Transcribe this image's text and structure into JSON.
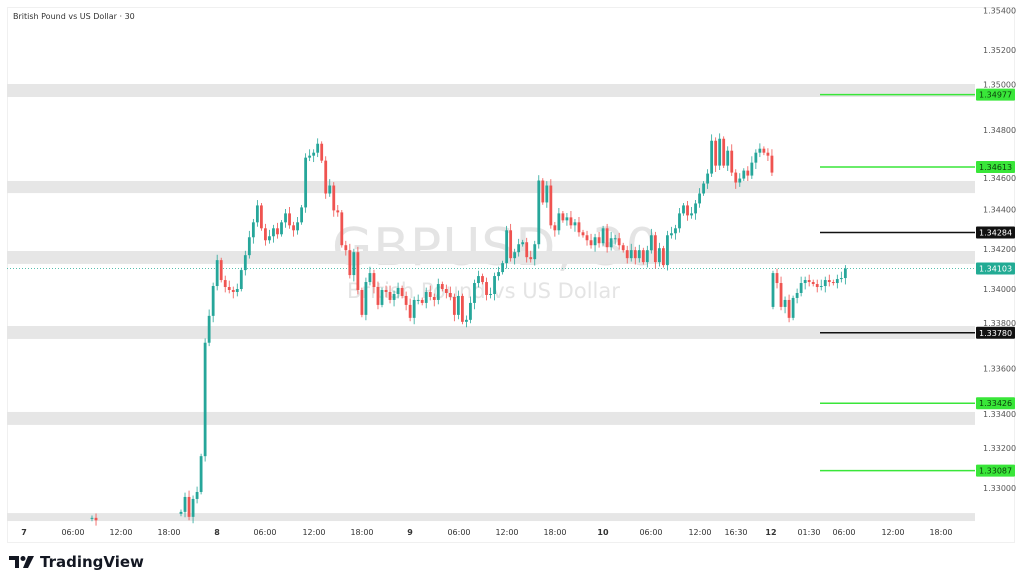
{
  "header": {
    "title": "British Pound vs US Dollar · 30"
  },
  "watermark": {
    "symbol": "GBPUSD, 30",
    "description": "British Pound vs US Dollar"
  },
  "footer": {
    "brand": "TradingView",
    "logo_icon": "tradingview-logo-icon"
  },
  "colors": {
    "up": "#26a69a",
    "down": "#ef5350",
    "zone": "#e6e6e6",
    "green_level": "#39e639",
    "black_level": "#111111",
    "current_price": "#22ab94"
  },
  "chart_data": {
    "type": "candlestick",
    "symbol": "GBPUSD",
    "interval": "30",
    "ylim": [
      1.3283,
      1.3542
    ],
    "y_ticks": [
      "1.35400",
      "1.35200",
      "1.35000",
      "1.34800",
      "1.34600",
      "1.34400",
      "1.34200",
      "1.34000",
      "1.33800",
      "1.33600",
      "1.33400",
      "1.33200",
      "1.33000"
    ],
    "x_ticks": [
      "7",
      "06:00",
      "12:00",
      "18:00",
      "8",
      "06:00",
      "12:00",
      "18:00",
      "9",
      "06:00",
      "12:00",
      "18:00",
      "10",
      "06:00",
      "12:00",
      "16:30",
      "12",
      "01:30",
      "06:00",
      "12:00",
      "18:00"
    ],
    "zones": [
      [
        1.34965,
        1.3503
      ],
      [
        1.34482,
        1.34543
      ],
      [
        1.34126,
        1.34191
      ],
      [
        1.33749,
        1.33814
      ],
      [
        1.33317,
        1.33382
      ],
      [
        1.32834,
        1.32874
      ]
    ],
    "levels": [
      {
        "price": "1.34977",
        "color": "green"
      },
      {
        "price": "1.34613",
        "color": "green"
      },
      {
        "price": "1.34284",
        "color": "black"
      },
      {
        "price": "1.33780",
        "color": "black"
      },
      {
        "price": "1.33426",
        "color": "green"
      },
      {
        "price": "1.33087",
        "color": "green"
      }
    ],
    "current_price": "1.34103",
    "sessions": [
      {
        "open": 1.32845,
        "closes": [
          1.3285,
          1.32838
        ]
      },
      {
        "open": 1.3287,
        "closes": [
          1.3288,
          1.32955,
          1.32855,
          1.32945,
          1.3298,
          1.3316,
          1.3373,
          1.33865,
          1.34015,
          1.34145,
          1.34045,
          1.3401,
          1.33995,
          1.33985,
          1.34,
          1.34095,
          1.3417,
          1.3426,
          1.34335,
          1.3442,
          1.34305,
          1.34245,
          1.34265,
          1.34305,
          1.34275,
          1.34335,
          1.3438,
          1.3432,
          1.34295,
          1.34335,
          1.3441,
          1.3466,
          1.3467,
          1.34685,
          1.3473,
          1.34645,
          1.3448,
          1.3452,
          1.34395,
          1.34385,
          1.3422,
          1.34195,
          1.3407,
          1.34185,
          1.33995,
          1.3387,
          1.34035,
          1.3408,
          1.3401,
          1.3392,
          1.33995,
          1.33985,
          1.33945,
          1.33975,
          1.34005,
          1.33965,
          1.3392,
          1.33855,
          1.33945,
          1.33945,
          1.3393,
          1.33985,
          1.3396,
          1.33945,
          1.34025,
          1.34,
          1.3398,
          1.3396,
          1.3387,
          1.33965,
          1.33835,
          1.33845,
          1.3393,
          1.3403,
          1.34065,
          1.34035,
          1.3397,
          1.33975,
          1.34065,
          1.34085,
          1.3413,
          1.34295,
          1.34155,
          1.34185,
          1.34225,
          1.34235,
          1.3416,
          1.3415,
          1.34225,
          1.34545,
          1.34435,
          1.3452,
          1.3432,
          1.34295,
          1.3438,
          1.34345,
          1.3436,
          1.3432,
          1.34335,
          1.34285,
          1.3427,
          1.34245,
          1.3422,
          1.3426,
          1.3423,
          1.34305,
          1.3421,
          1.34255,
          1.34255,
          1.3422,
          1.34195,
          1.34155,
          1.34195,
          1.34155,
          1.34195,
          1.34135,
          1.34195,
          1.3427,
          1.34135,
          1.34205,
          1.3412,
          1.3427,
          1.3428,
          1.34305,
          1.3438,
          1.3442,
          1.3437,
          1.3438,
          1.3443,
          1.3448,
          1.3453,
          1.3458,
          1.34745,
          1.3462,
          1.34755,
          1.3462,
          1.34695,
          1.34585,
          1.34535,
          1.34555,
          1.34595,
          1.3457,
          1.34635,
          1.34685,
          1.34705,
          1.34685,
          1.3467,
          1.34585
        ]
      },
      {
        "open": 1.3391,
        "closes": [
          1.3408,
          1.3403,
          1.3391,
          1.33945,
          1.33855,
          1.33955,
          1.3398,
          1.3403,
          1.34045,
          1.34035,
          1.34025,
          1.3401,
          1.34015,
          1.34045,
          1.34035,
          1.3403,
          1.3405,
          1.34055,
          1.34103
        ]
      }
    ]
  }
}
